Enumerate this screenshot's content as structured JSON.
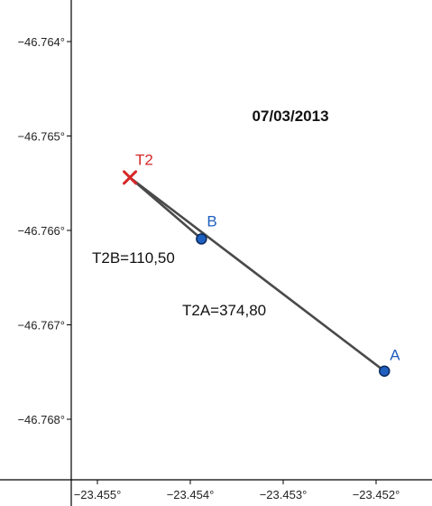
{
  "date": "07/03/2013",
  "axes": {
    "x_ticks": [
      {
        "value": -23.455,
        "label": "−23.455°"
      },
      {
        "value": -23.454,
        "label": "−23.454°"
      },
      {
        "value": -23.453,
        "label": "−23.453°"
      },
      {
        "value": -23.452,
        "label": "−23.452°"
      }
    ],
    "y_ticks": [
      {
        "value": -46.764,
        "label": "−46.764°"
      },
      {
        "value": -46.765,
        "label": "−46.765°"
      },
      {
        "value": -46.766,
        "label": "−46.766°"
      },
      {
        "value": -46.767,
        "label": "−46.767°"
      },
      {
        "value": -46.768,
        "label": "−46.768°"
      }
    ]
  },
  "points": [
    {
      "id": "T2",
      "label": "T2",
      "x": -23.45465,
      "y": -46.76544,
      "marker": "cross",
      "color": "#d62728"
    },
    {
      "id": "B",
      "label": "B",
      "x": -23.45388,
      "y": -46.76609,
      "marker": "circle",
      "color": "#1f5fbf"
    },
    {
      "id": "A",
      "label": "A",
      "x": -23.45191,
      "y": -46.76749,
      "marker": "circle",
      "color": "#1f5fbf"
    }
  ],
  "segments": [
    {
      "from": "T2",
      "to": "B",
      "label": "T2B=110,50"
    },
    {
      "from": "T2",
      "to": "A",
      "label": "T2A=374,80"
    }
  ],
  "colors": {
    "axis": "#000000",
    "segment": "#4a4a4a",
    "point_fill": "#1f5fbf",
    "point_stroke": "#0b2a5c",
    "cross": "#d62728"
  }
}
